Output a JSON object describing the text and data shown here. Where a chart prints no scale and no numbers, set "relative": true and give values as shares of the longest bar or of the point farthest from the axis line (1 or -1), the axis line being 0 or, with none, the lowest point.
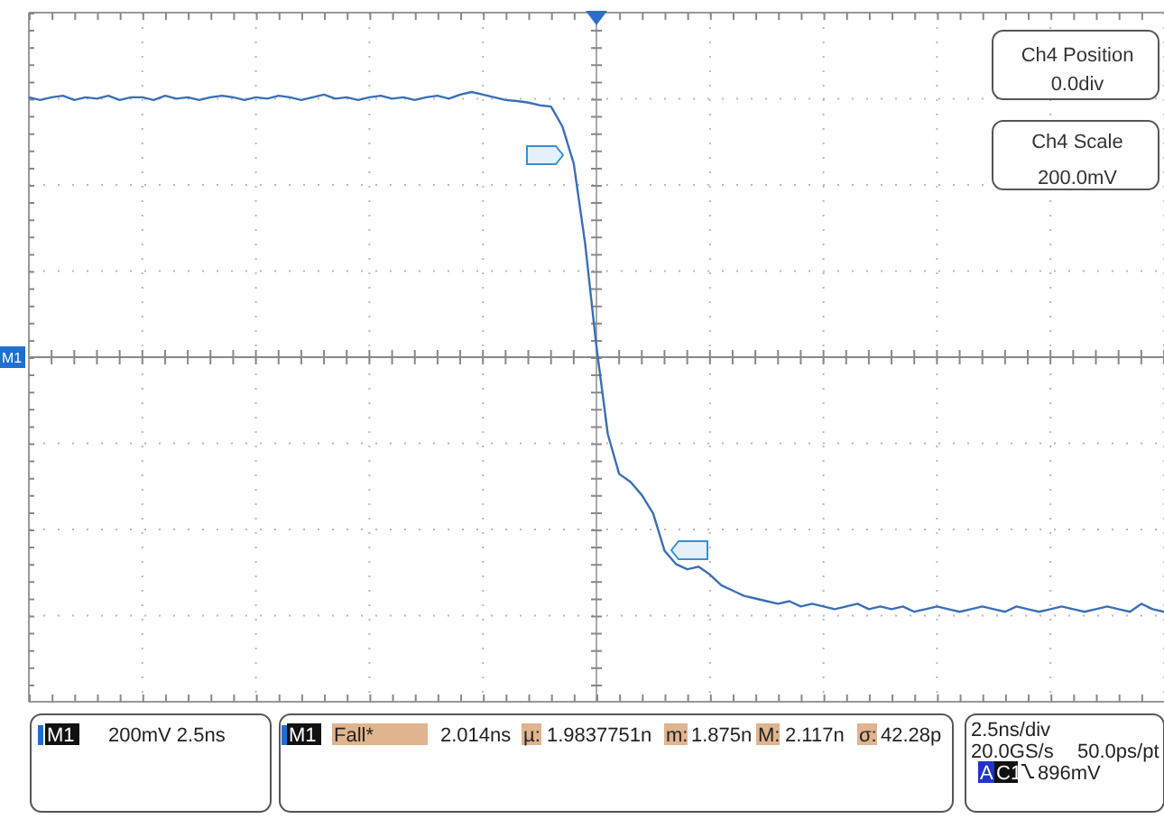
{
  "chart_data": {
    "type": "line",
    "relative": true,
    "grid": true,
    "categories": [
      null,
      null,
      null,
      null,
      null,
      null,
      null,
      null,
      null,
      null,
      null,
      null,
      null,
      null,
      null,
      null,
      null,
      null,
      null,
      null,
      null,
      null,
      null,
      null,
      null,
      null,
      null,
      null,
      null,
      null,
      null,
      null,
      null,
      null,
      null,
      null,
      null,
      null,
      null,
      null,
      null,
      null,
      null,
      null,
      null,
      null,
      null,
      null,
      null,
      null,
      null,
      null,
      null,
      null,
      null,
      null,
      null,
      null,
      null,
      null,
      null,
      null,
      null,
      null,
      null,
      null,
      null,
      null,
      null,
      null,
      null,
      null,
      null,
      null,
      null,
      null,
      null,
      null,
      null,
      null,
      null,
      null,
      null,
      null,
      null,
      null,
      null,
      null,
      null,
      null,
      null,
      null,
      null,
      null,
      null,
      null,
      null,
      null,
      null,
      null,
      null
    ],
    "series": [
      {
        "color": "#3a6fb5",
        "values": [
          0.98,
          0.97,
          0.98,
          0.986,
          0.97,
          0.98,
          0.975,
          0.986,
          0.97,
          0.98,
          0.98,
          0.97,
          0.986,
          0.975,
          0.98,
          0.97,
          0.98,
          0.986,
          0.98,
          0.97,
          0.98,
          0.975,
          0.986,
          0.98,
          0.97,
          0.98,
          0.99,
          0.975,
          0.98,
          0.97,
          0.98,
          0.986,
          0.975,
          0.98,
          0.97,
          0.98,
          0.986,
          0.975,
          0.99,
          1.0,
          0.99,
          0.98,
          0.97,
          0.966,
          0.96,
          0.95,
          0.945,
          0.87,
          0.73,
          0.43,
          0.04,
          -0.29,
          -0.44,
          -0.47,
          -0.52,
          -0.59,
          -0.73,
          -0.78,
          -0.8,
          -0.79,
          -0.82,
          -0.86,
          -0.88,
          -0.9,
          -0.91,
          -0.92,
          -0.93,
          -0.92,
          -0.94,
          -0.93,
          -0.94,
          -0.95,
          -0.94,
          -0.93,
          -0.95,
          -0.94,
          -0.95,
          -0.94,
          -0.96,
          -0.95,
          -0.94,
          -0.95,
          -0.96,
          -0.95,
          -0.94,
          -0.95,
          -0.96,
          -0.94,
          -0.95,
          -0.96,
          -0.95,
          -0.94,
          -0.95,
          -0.96,
          -0.95,
          -0.94,
          -0.95,
          -0.96,
          -0.93,
          -0.95,
          -0.96
        ]
      }
    ],
    "ref_lines": [
      {
        "axis": "y",
        "value": 0,
        "label": "M1",
        "color": "#888888"
      }
    ],
    "annotations": [
      "Ch4 Position",
      "0.0div",
      "Ch4 Scale",
      "200.0mV",
      "M1",
      "200mV 2.5ns",
      "M1",
      "Fall*",
      "2.014ns",
      "µ:",
      "1.9837751n",
      "m:",
      "1.875n",
      "M:",
      "2.117n",
      "σ:",
      "42.28p",
      "2.5ns/div",
      "20.0GS/s",
      "50.0ps/pt",
      "A",
      "C1",
      "896mV"
    ]
  }
}
